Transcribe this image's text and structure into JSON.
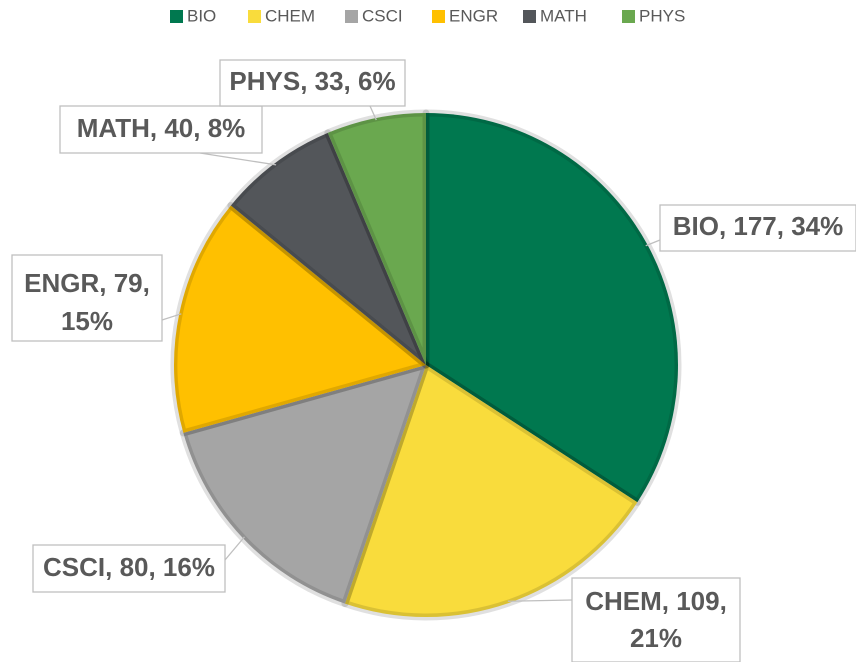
{
  "chart_data": {
    "type": "pie",
    "categories": [
      "BIO",
      "CHEM",
      "CSCI",
      "ENGR",
      "MATH",
      "PHYS"
    ],
    "values": [
      177,
      109,
      80,
      79,
      40,
      33
    ],
    "value_labels": [
      [
        "BIO, 177, 34%"
      ],
      [
        "CHEM, 109,",
        "21%"
      ],
      [
        "CSCI, 80, 16%"
      ],
      [
        "ENGR, 79,",
        "15%"
      ],
      [
        "MATH, 40, 8%"
      ],
      [
        "PHYS, 33, 6%"
      ]
    ],
    "colors": [
      "#00784f",
      "#f9dc3c",
      "#a5a5a5",
      "#ffc000",
      "#53565a",
      "#6aa84f"
    ],
    "legend": "top"
  }
}
